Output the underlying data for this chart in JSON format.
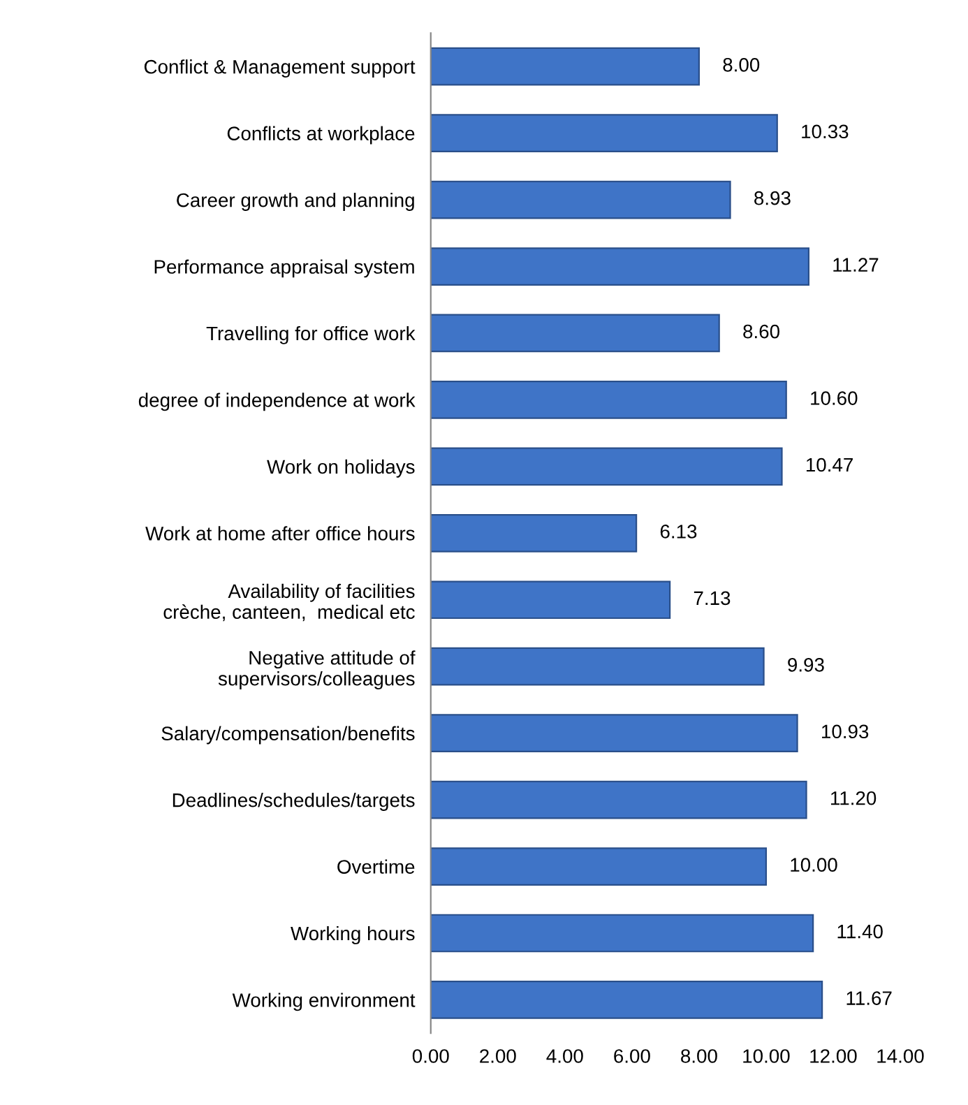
{
  "chart_data": {
    "type": "bar",
    "orientation": "horizontal",
    "categories": [
      "Conflict & Management support",
      "Conflicts at workplace",
      "Career growth and planning",
      "Performance appraisal system",
      "Travelling for office work",
      "degree of independence at work",
      "Work on holidays",
      "Work at home after office hours",
      "Availability of facilities\ncrèche, canteen,  medical etc",
      "Negative attitude of\nsupervisors/colleagues",
      "Salary/compensation/benefits",
      "Deadlines/schedules/targets",
      "Overtime",
      "Working hours",
      "Working environment"
    ],
    "values": [
      8.0,
      10.33,
      8.93,
      11.27,
      8.6,
      10.6,
      10.47,
      6.13,
      7.13,
      9.93,
      10.93,
      11.2,
      10.0,
      11.4,
      11.67
    ],
    "value_labels": [
      "8.00",
      "10.33",
      "8.93",
      "11.27",
      "8.60",
      "10.60",
      "10.47",
      "6.13",
      "7.13",
      "9.93",
      "10.93",
      "11.20",
      "10.00",
      "11.40",
      "11.67"
    ],
    "color": "#3f74c7",
    "xlim": [
      0,
      14
    ],
    "xticks": [
      {
        "value": 0,
        "label": "0.00"
      },
      {
        "value": 2,
        "label": "2.00"
      },
      {
        "value": 4,
        "label": "4.00"
      },
      {
        "value": 6,
        "label": "6.00"
      },
      {
        "value": 8,
        "label": "8.00"
      },
      {
        "value": 10,
        "label": "10.00"
      },
      {
        "value": 12,
        "label": "12.00"
      },
      {
        "value": 14,
        "label": "14.00"
      }
    ],
    "grid": false,
    "legend": false
  }
}
